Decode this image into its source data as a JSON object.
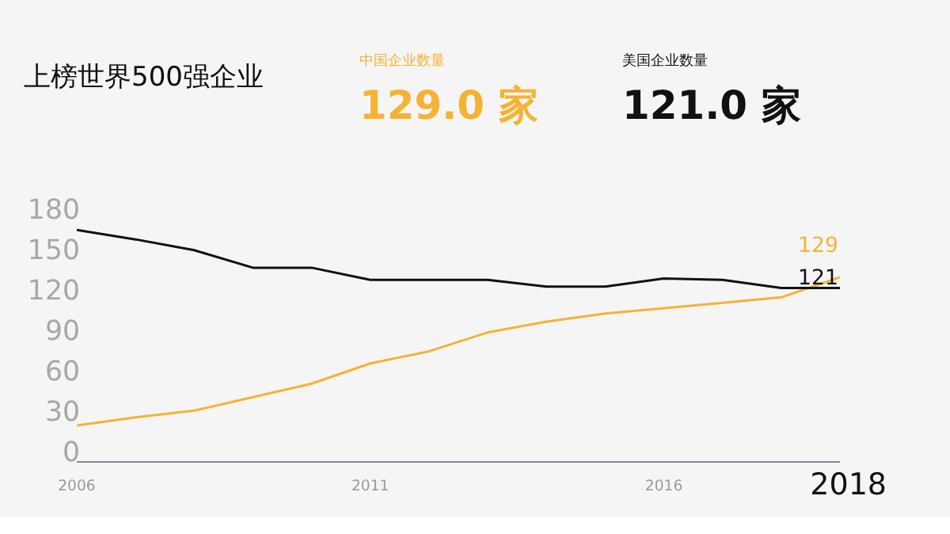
{
  "chart_data": {
    "type": "line",
    "title": "上榜世界500强企业",
    "x": [
      2006,
      2007,
      2008,
      2009,
      2010,
      2011,
      2012,
      2013,
      2014,
      2015,
      2016,
      2017,
      2018,
      2019
    ],
    "series": [
      {
        "name": "中国企业数量",
        "color": "#f5b335",
        "values": [
          19,
          25,
          30,
          40,
          50,
          65,
          74,
          88,
          96,
          102,
          106,
          110,
          114,
          129
        ],
        "value_labels": [
          null,
          null,
          null,
          null,
          null,
          null,
          null,
          null,
          null,
          null,
          null,
          null,
          null,
          "129"
        ]
      },
      {
        "name": "美国企业数量",
        "color": "#111111",
        "values": [
          164,
          157,
          149,
          136,
          136,
          127,
          127,
          127,
          122,
          122,
          128,
          127,
          121,
          121
        ],
        "value_labels": [
          null,
          null,
          null,
          null,
          null,
          null,
          null,
          null,
          null,
          null,
          null,
          null,
          null,
          "121"
        ]
      }
    ],
    "annotations": [
      "129.0 家",
      "121.0 家",
      "2018"
    ],
    "xlim": [
      2006,
      2019
    ],
    "xticks": [
      2006,
      2011,
      2016
    ],
    "ylim": [
      -8,
      180
    ],
    "yticks": [
      0,
      30,
      60,
      90,
      120,
      150,
      180
    ],
    "grid": false,
    "marker": "none",
    "line_style": "solid"
  }
}
